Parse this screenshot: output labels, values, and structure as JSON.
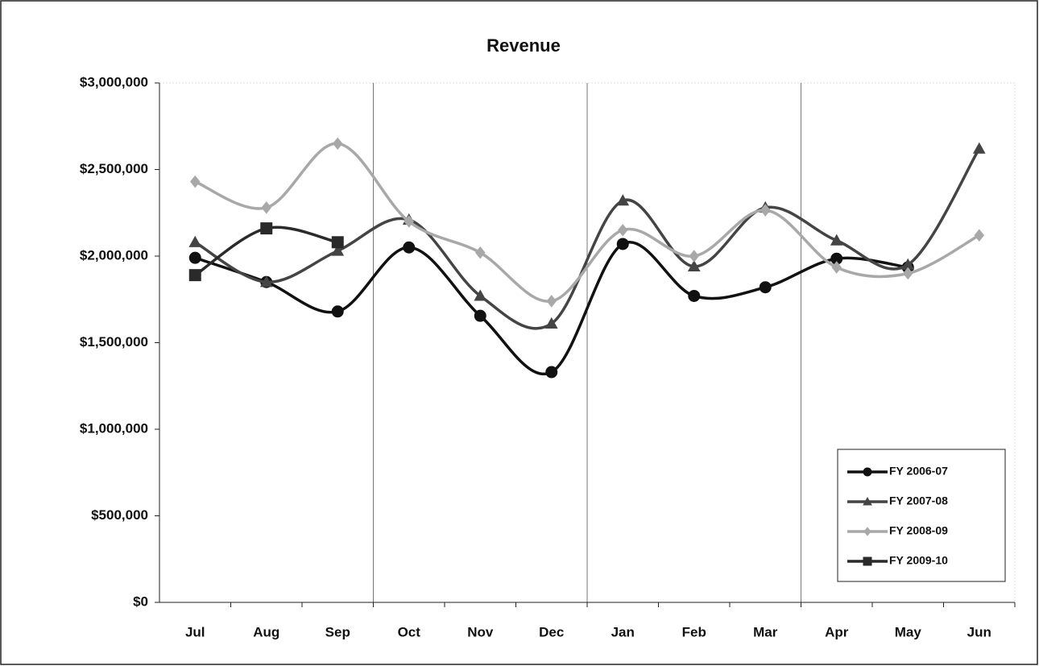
{
  "chart_data": {
    "type": "line",
    "title": "Revenue",
    "categories": [
      "Jul",
      "Aug",
      "Sep",
      "Oct",
      "Nov",
      "Dec",
      "Jan",
      "Feb",
      "Mar",
      "Apr",
      "May",
      "Jun"
    ],
    "ylim": [
      0,
      3000000
    ],
    "yticks": [
      {
        "value": 0,
        "label": "$0"
      },
      {
        "value": 500000,
        "label": "$500,000"
      },
      {
        "value": 1000000,
        "label": "$1,000,000"
      },
      {
        "value": 1500000,
        "label": "$1,500,000"
      },
      {
        "value": 2000000,
        "label": "$2,000,000"
      },
      {
        "value": 2500000,
        "label": "$2,500,000"
      },
      {
        "value": 3000000,
        "label": "$3,000,000"
      }
    ],
    "smooth": true,
    "legend": "lower right",
    "series": [
      {
        "name": "FY 2006-07",
        "color": "#111111",
        "marker": "circle",
        "values": [
          1990000,
          1850000,
          1680000,
          2050000,
          1655000,
          1330000,
          2070000,
          1770000,
          1820000,
          1985000,
          1935000,
          null
        ]
      },
      {
        "name": "FY 2007-08",
        "color": "#444444",
        "marker": "triangle",
        "values": [
          2080000,
          1850000,
          2030000,
          2210000,
          1770000,
          1610000,
          2320000,
          1940000,
          2280000,
          2090000,
          1950000,
          2620000
        ]
      },
      {
        "name": "FY 2008-09",
        "color": "#a8a8a8",
        "marker": "diamond",
        "values": [
          2430000,
          2280000,
          2650000,
          2200000,
          2020000,
          1740000,
          2150000,
          2000000,
          2265000,
          1935000,
          1900000,
          2120000
        ]
      },
      {
        "name": "FY 2009-10",
        "color": "#2a2a2a",
        "marker": "square",
        "values": [
          1890000,
          2160000,
          2080000,
          null,
          null,
          null,
          null,
          null,
          null,
          null,
          null,
          null
        ]
      }
    ]
  }
}
